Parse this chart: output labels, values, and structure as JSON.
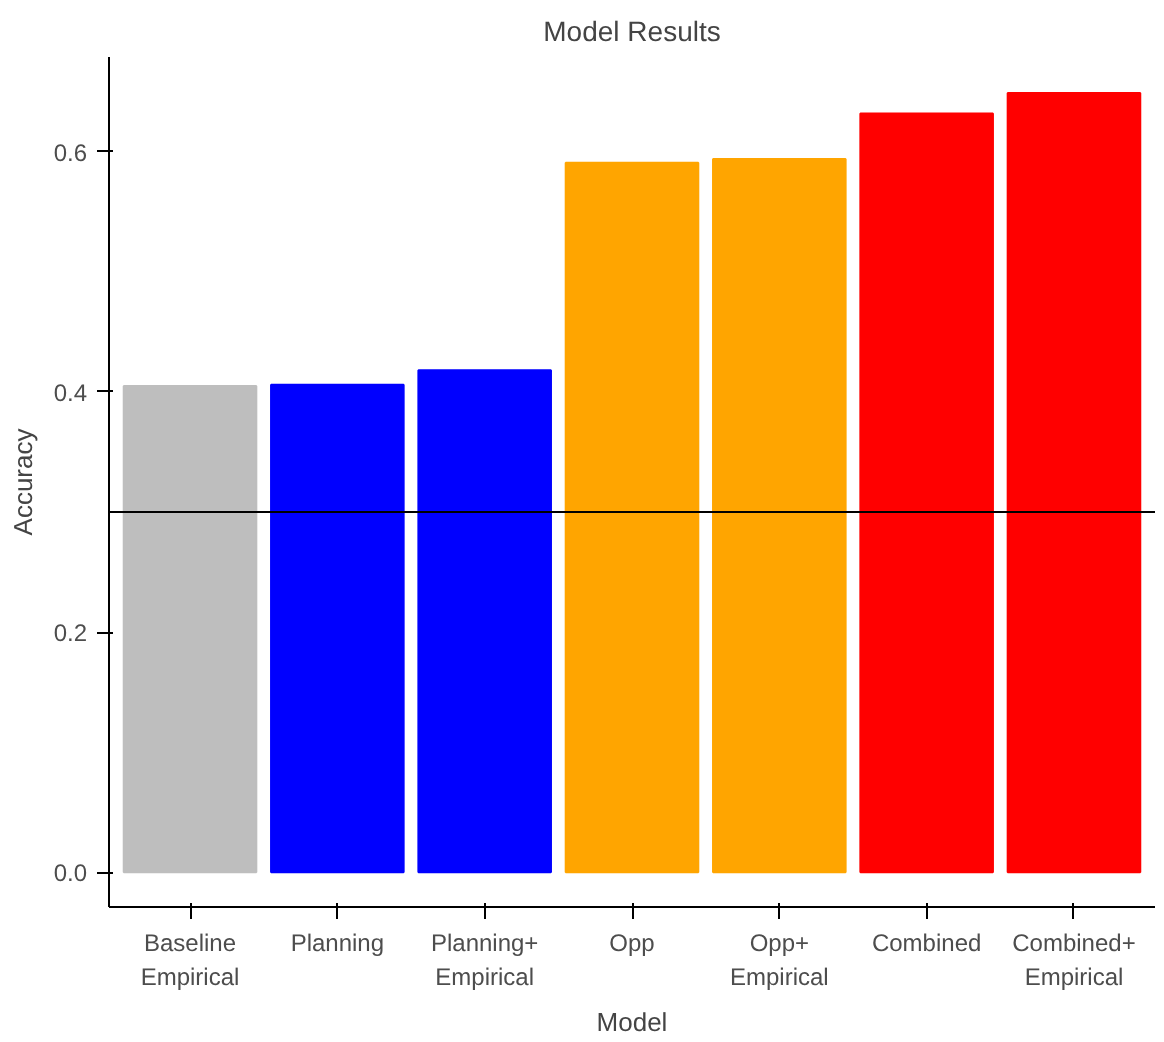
{
  "chart_data": {
    "type": "bar",
    "title": "Model Results",
    "xlabel": "Model",
    "ylabel": "Accuracy",
    "categories": [
      "Baseline\nEmpirical",
      "Planning",
      "Planning+\nEmpirical",
      "Opp",
      "Opp+\nEmpirical",
      "Combined",
      "Combined+\nEmpirical"
    ],
    "values": [
      0.405,
      0.406,
      0.418,
      0.591,
      0.594,
      0.632,
      0.649
    ],
    "colors": [
      "#bebebe",
      "#0000ff",
      "#0000ff",
      "#ffa500",
      "#ffa500",
      "#ff0000",
      "#ff0000"
    ],
    "ylim": [
      -0.029,
      0.679
    ],
    "yticks": [
      {
        "value": 0,
        "label": "0.0"
      },
      0.2,
      0.4,
      0.6
    ],
    "ref_lines": [
      {
        "axis": "y",
        "value": 0.3,
        "color": "#000000"
      }
    ],
    "grid": false
  }
}
